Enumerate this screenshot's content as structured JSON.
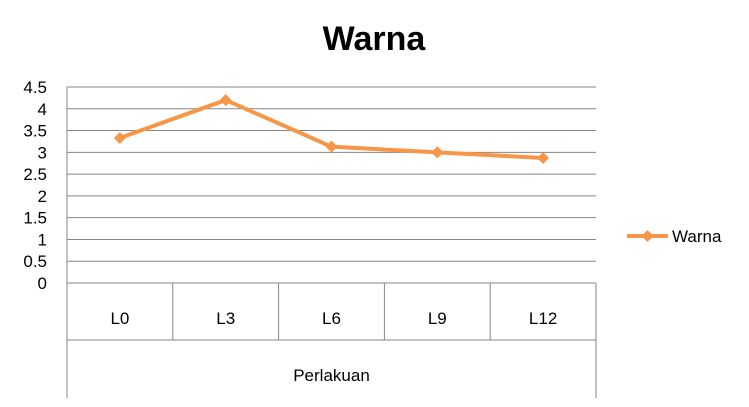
{
  "chart_data": {
    "type": "line",
    "title": "Warna",
    "xlabel": "Perlakuan",
    "ylabel": "",
    "categories": [
      "L0",
      "L3",
      "L6",
      "L9",
      "L12"
    ],
    "series": [
      {
        "name": "Warna",
        "values": [
          3.33,
          4.2,
          3.13,
          3.0,
          2.87
        ]
      }
    ],
    "ylim": [
      0,
      4.5
    ],
    "yticks": [
      "0",
      "0.5",
      "1",
      "1.5",
      "2",
      "2.5",
      "3",
      "3.5",
      "4",
      "4.5"
    ],
    "ytick_values": [
      0,
      0.5,
      1,
      1.5,
      2,
      2.5,
      3,
      3.5,
      4,
      4.5
    ],
    "grid": true,
    "legend_position": "right",
    "colors": {
      "series": "#F79646",
      "grid": "#868686",
      "axis": "#868686"
    },
    "marker": "diamond"
  }
}
